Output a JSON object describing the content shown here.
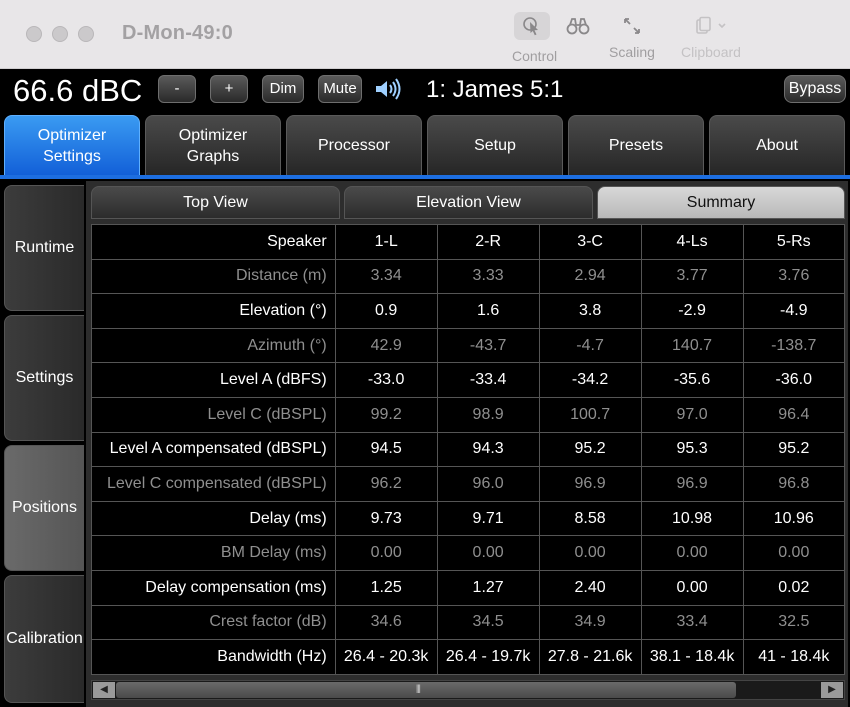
{
  "window": {
    "title": "D-Mon-49:0",
    "toolbar": [
      {
        "label": "Control",
        "icon": "cursor-icon",
        "state": "active"
      },
      {
        "label": "Scaling",
        "icon": "expand-arrows-icon",
        "state": "normal"
      },
      {
        "label": "Clipboard",
        "icon": "clipboard-icon",
        "state": "disabled"
      }
    ]
  },
  "topbar": {
    "level": "66.6 dBC",
    "minus_label": "-",
    "plus_label": "+",
    "dim_label": "Dim",
    "mute_label": "Mute",
    "preset_name": "1: James 5:1",
    "bypass_label": "Bypass"
  },
  "main_tabs": [
    {
      "label": "Optimizer\nSettings",
      "active": true
    },
    {
      "label": "Optimizer\nGraphs",
      "active": false
    },
    {
      "label": "Processor",
      "active": false
    },
    {
      "label": "Setup",
      "active": false
    },
    {
      "label": "Presets",
      "active": false
    },
    {
      "label": "About",
      "active": false
    }
  ],
  "side_tabs": [
    {
      "label": "Runtime",
      "active": false
    },
    {
      "label": "Settings",
      "active": false
    },
    {
      "label": "Positions",
      "active": true
    },
    {
      "label": "Calibration",
      "active": false
    }
  ],
  "sub_tabs": [
    {
      "label": "Top View",
      "active": false
    },
    {
      "label": "Elevation View",
      "active": false
    },
    {
      "label": "Summary",
      "active": true
    }
  ],
  "table": {
    "rows": [
      {
        "label": "Speaker",
        "style": "strong",
        "values": [
          "1-L",
          "2-R",
          "3-C",
          "4-Ls",
          "5-Rs"
        ]
      },
      {
        "label": "Distance (m)",
        "style": "dim",
        "values": [
          "3.34",
          "3.33",
          "2.94",
          "3.77",
          "3.76"
        ]
      },
      {
        "label": "Elevation (°)",
        "style": "strong",
        "values": [
          "0.9",
          "1.6",
          "3.8",
          "-2.9",
          "-4.9"
        ]
      },
      {
        "label": "Azimuth (°)",
        "style": "dim",
        "values": [
          "42.9",
          "-43.7",
          "-4.7",
          "140.7",
          "-138.7"
        ]
      },
      {
        "label": "Level A (dBFS)",
        "style": "strong",
        "values": [
          "-33.0",
          "-33.4",
          "-34.2",
          "-35.6",
          "-36.0"
        ]
      },
      {
        "label": "Level C (dBSPL)",
        "style": "dim",
        "values": [
          "99.2",
          "98.9",
          "100.7",
          "97.0",
          "96.4"
        ]
      },
      {
        "label": "Level A compensated (dBSPL)",
        "style": "strong",
        "values": [
          "94.5",
          "94.3",
          "95.2",
          "95.3",
          "95.2"
        ]
      },
      {
        "label": "Level C compensated (dBSPL)",
        "style": "dim",
        "values": [
          "96.2",
          "96.0",
          "96.9",
          "96.9",
          "96.8"
        ]
      },
      {
        "label": "Delay (ms)",
        "style": "strong",
        "values": [
          "9.73",
          "9.71",
          "8.58",
          "10.98",
          "10.96"
        ]
      },
      {
        "label": "BM Delay (ms)",
        "style": "dim",
        "values": [
          "0.00",
          "0.00",
          "0.00",
          "0.00",
          "0.00"
        ]
      },
      {
        "label": "Delay compensation (ms)",
        "style": "strong",
        "values": [
          "1.25",
          "1.27",
          "2.40",
          "0.00",
          "0.02"
        ]
      },
      {
        "label": "Crest factor (dB)",
        "style": "dim",
        "values": [
          "34.6",
          "34.5",
          "34.9",
          "33.4",
          "32.5"
        ]
      },
      {
        "label": "Bandwidth (Hz)",
        "style": "strong",
        "values": [
          "26.4 - 20.3k",
          "26.4 - 19.7k",
          "27.8 - 21.6k",
          "38.1 - 18.4k",
          "41 - 18.4k"
        ]
      }
    ]
  },
  "scrollbar": {
    "left_arrow": "◀",
    "right_arrow": "▶",
    "grip": "⦀"
  },
  "colors": {
    "accent_blue": "#1d6ee0",
    "active_tab": "#2a84ea",
    "background": "#000000",
    "dim_text": "#8f8f8f"
  }
}
